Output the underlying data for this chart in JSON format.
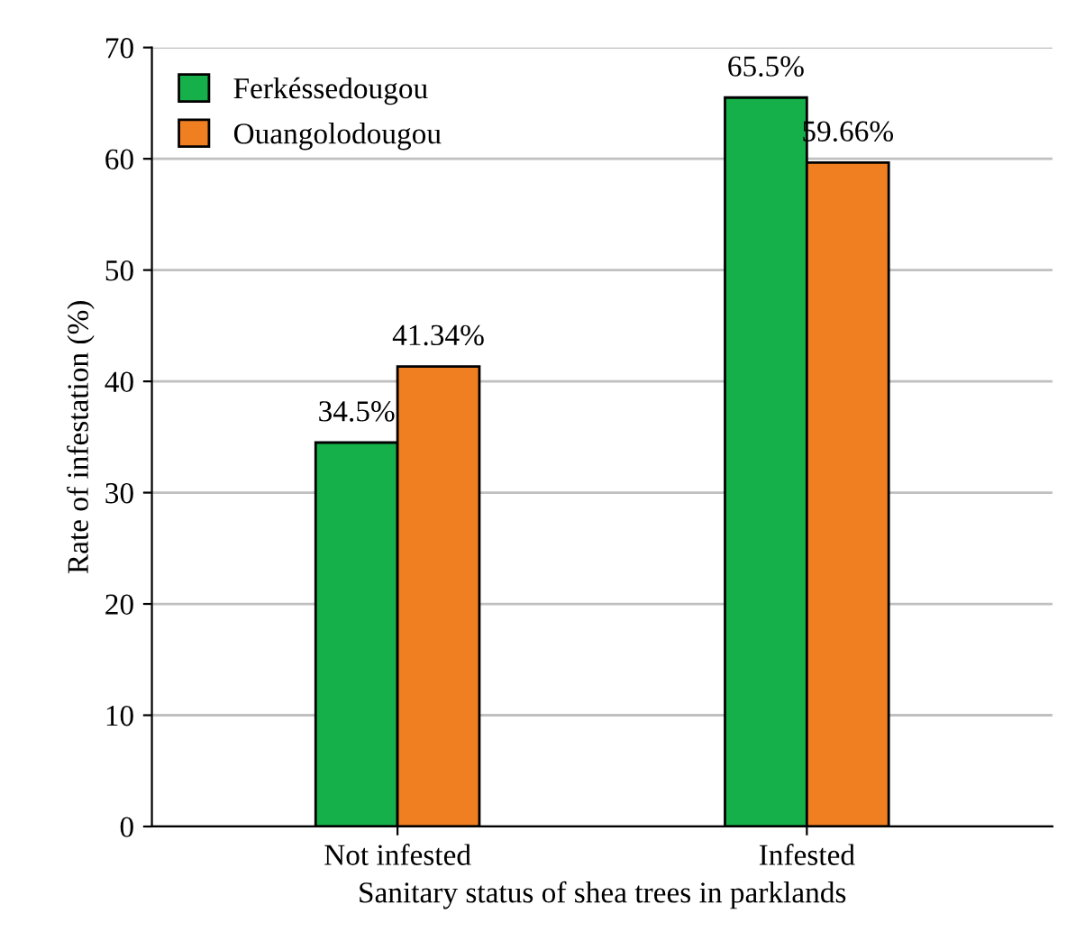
{
  "chart_data": {
    "type": "bar",
    "xlabel": "Sanitary status of shea trees in parklands",
    "ylabel": "Rate of infestation (%)",
    "categories": [
      "Not infested",
      "Infested"
    ],
    "series": [
      {
        "name": "Ferkéssedougou",
        "color": "#16b04a",
        "values": [
          34.5,
          65.5
        ],
        "value_labels": [
          "34.5%",
          "65.5%"
        ]
      },
      {
        "name": "Ouangolodougou",
        "color": "#f07f22",
        "values": [
          41.34,
          59.66
        ],
        "value_labels": [
          "41.34%",
          "59.66%"
        ]
      }
    ],
    "ylim": [
      0,
      70
    ],
    "yticks": [
      0,
      10,
      20,
      30,
      40,
      50,
      60,
      70
    ],
    "grid": "y",
    "legend": "top left"
  }
}
